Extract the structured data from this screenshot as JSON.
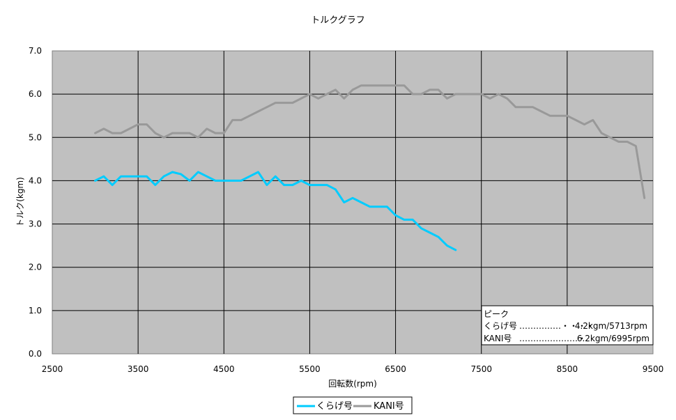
{
  "chart_data": {
    "type": "line",
    "title": "トルクグラフ",
    "xlabel": "回転数(rpm)",
    "ylabel": "トルク(kgm)",
    "xlim": [
      2500,
      9500
    ],
    "ylim": [
      0,
      7
    ],
    "x_ticks": [
      "2500",
      "3500",
      "4500",
      "5500",
      "6500",
      "7500",
      "8500",
      "9500"
    ],
    "y_ticks": [
      "0.0",
      "1.0",
      "2.0",
      "3.0",
      "4.0",
      "5.0",
      "6.0",
      "7.0"
    ],
    "grid": true,
    "plot_background": "#c0c0c0",
    "legend_position": "bottom",
    "series": [
      {
        "name": "くらげ号",
        "color": "#00ccff",
        "points": [
          [
            3000,
            4.0
          ],
          [
            3100,
            4.1
          ],
          [
            3200,
            3.9
          ],
          [
            3300,
            4.1
          ],
          [
            3400,
            4.1
          ],
          [
            3500,
            4.1
          ],
          [
            3600,
            4.1
          ],
          [
            3700,
            3.9
          ],
          [
            3800,
            4.1
          ],
          [
            3900,
            4.2
          ],
          [
            4000,
            4.15
          ],
          [
            4100,
            4.0
          ],
          [
            4200,
            4.2
          ],
          [
            4300,
            4.1
          ],
          [
            4400,
            4.0
          ],
          [
            4500,
            4.0
          ],
          [
            4600,
            4.0
          ],
          [
            4700,
            4.0
          ],
          [
            4800,
            4.1
          ],
          [
            4900,
            4.2
          ],
          [
            5000,
            3.9
          ],
          [
            5100,
            4.1
          ],
          [
            5200,
            3.9
          ],
          [
            5300,
            3.9
          ],
          [
            5400,
            4.0
          ],
          [
            5500,
            3.9
          ],
          [
            5600,
            3.9
          ],
          [
            5700,
            3.9
          ],
          [
            5800,
            3.8
          ],
          [
            5900,
            3.5
          ],
          [
            6000,
            3.6
          ],
          [
            6100,
            3.5
          ],
          [
            6200,
            3.4
          ],
          [
            6300,
            3.4
          ],
          [
            6400,
            3.4
          ],
          [
            6500,
            3.2
          ],
          [
            6600,
            3.1
          ],
          [
            6700,
            3.1
          ],
          [
            6800,
            2.9
          ],
          [
            6900,
            2.8
          ],
          [
            7000,
            2.7
          ],
          [
            7100,
            2.5
          ],
          [
            7200,
            2.4
          ]
        ]
      },
      {
        "name": "KANI号",
        "color": "#999999",
        "points": [
          [
            3000,
            5.1
          ],
          [
            3100,
            5.2
          ],
          [
            3200,
            5.1
          ],
          [
            3300,
            5.1
          ],
          [
            3400,
            5.2
          ],
          [
            3500,
            5.3
          ],
          [
            3600,
            5.3
          ],
          [
            3700,
            5.1
          ],
          [
            3800,
            5.0
          ],
          [
            3900,
            5.1
          ],
          [
            4000,
            5.1
          ],
          [
            4100,
            5.1
          ],
          [
            4200,
            5.0
          ],
          [
            4300,
            5.2
          ],
          [
            4400,
            5.1
          ],
          [
            4500,
            5.1
          ],
          [
            4600,
            5.4
          ],
          [
            4700,
            5.4
          ],
          [
            4800,
            5.5
          ],
          [
            4900,
            5.6
          ],
          [
            5000,
            5.7
          ],
          [
            5100,
            5.8
          ],
          [
            5200,
            5.8
          ],
          [
            5300,
            5.8
          ],
          [
            5400,
            5.9
          ],
          [
            5500,
            6.0
          ],
          [
            5600,
            5.9
          ],
          [
            5700,
            6.0
          ],
          [
            5800,
            6.1
          ],
          [
            5900,
            5.9
          ],
          [
            6000,
            6.1
          ],
          [
            6100,
            6.2
          ],
          [
            6200,
            6.2
          ],
          [
            6300,
            6.2
          ],
          [
            6400,
            6.2
          ],
          [
            6500,
            6.2
          ],
          [
            6600,
            6.2
          ],
          [
            6700,
            6.0
          ],
          [
            6800,
            6.0
          ],
          [
            6900,
            6.1
          ],
          [
            7000,
            6.1
          ],
          [
            7100,
            5.9
          ],
          [
            7200,
            6.0
          ],
          [
            7300,
            6.0
          ],
          [
            7400,
            6.0
          ],
          [
            7500,
            6.0
          ],
          [
            7600,
            5.9
          ],
          [
            7700,
            6.0
          ],
          [
            7800,
            5.9
          ],
          [
            7900,
            5.7
          ],
          [
            8000,
            5.7
          ],
          [
            8100,
            5.7
          ],
          [
            8200,
            5.6
          ],
          [
            8300,
            5.5
          ],
          [
            8400,
            5.5
          ],
          [
            8500,
            5.5
          ],
          [
            8600,
            5.4
          ],
          [
            8700,
            5.3
          ],
          [
            8800,
            5.4
          ],
          [
            8900,
            5.1
          ],
          [
            9000,
            5.0
          ],
          [
            9100,
            4.9
          ],
          [
            9200,
            4.9
          ],
          [
            9300,
            4.8
          ],
          [
            9400,
            3.6
          ]
        ]
      }
    ],
    "peak_box": {
      "heading": "ピーク",
      "lines": [
        {
          "label": "くらげ号",
          "dots": "……………・・・・",
          "value": "4.2kgm/5713rpm"
        },
        {
          "label": "KANI号",
          "dots": "…………………・",
          "value": "6.2kgm/6995rpm"
        }
      ]
    }
  }
}
